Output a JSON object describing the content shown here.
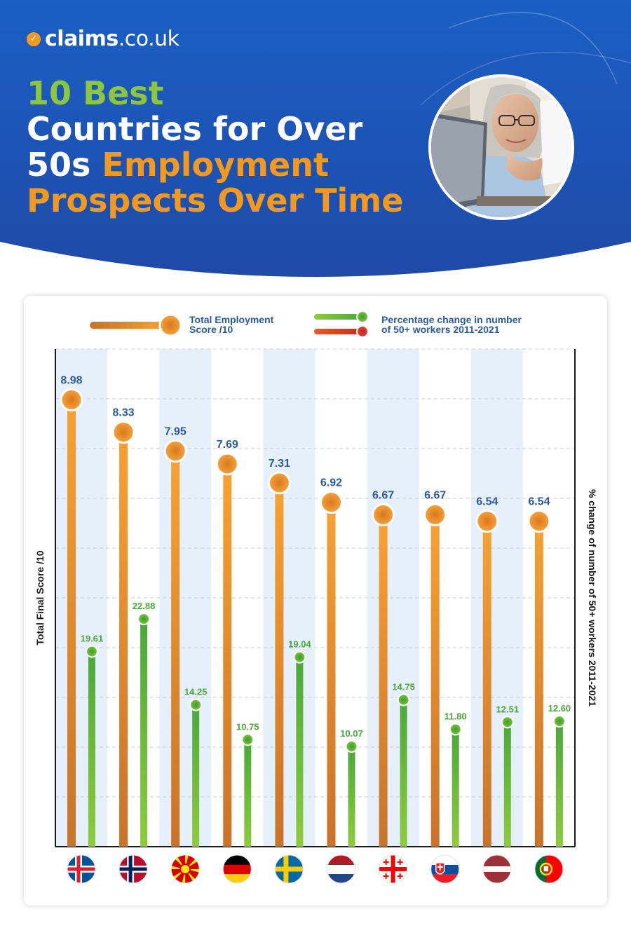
{
  "brand": {
    "name": "claims",
    "suffix": ".co.uk"
  },
  "header": {
    "title_line1": "10 Best",
    "title_white_1": "Countries for Over",
    "title_white_2": "50s ",
    "title_orange_1": "Employment",
    "title_orange_2": "Prospects Over Time"
  },
  "colors": {
    "header_top": "#1b5fc4",
    "header_bottom": "#1e4fae",
    "orange": "#f39a1e",
    "green": "#5db43a",
    "red": "#d9362b",
    "label_blue": "#2c5aa0",
    "column_band": "#e6f0fb"
  },
  "legend": {
    "score_label_1": "Total Employment",
    "score_label_2": "Score /10",
    "change_label_1": "Percentage change in number",
    "change_label_2": "of 50+ workers 2011-2021"
  },
  "chart_data": {
    "type": "bar",
    "title": "",
    "ylabel": "Total Final Score /10",
    "y2label": "% change of number of 50+ workers 2011-2021",
    "ylim": [
      0,
      10
    ],
    "y2lim": [
      0,
      50
    ],
    "grid": true,
    "legend_position": "top",
    "categories": [
      "iceland-flag-icon",
      "norway-flag-icon",
      "north-macedonia-flag-icon",
      "germany-flag-icon",
      "sweden-flag-icon",
      "netherlands-flag-icon",
      "georgia-flag-icon",
      "slovakia-flag-icon",
      "latvia-flag-icon",
      "portugal-flag-icon"
    ],
    "series": [
      {
        "name": "Total Employment Score /10",
        "axis": "left",
        "values": [
          8.98,
          8.33,
          7.95,
          7.69,
          7.31,
          6.92,
          6.67,
          6.67,
          6.54,
          6.54
        ],
        "labels": [
          "8.98",
          "8.33",
          "7.95",
          "7.69",
          "7.31",
          "6.92",
          "6.67",
          "6.67",
          "6.54",
          "6.54"
        ]
      },
      {
        "name": "Percentage change in number of 50+ workers 2011-2021",
        "axis": "right",
        "values": [
          19.61,
          22.88,
          14.25,
          10.75,
          19.04,
          10.07,
          14.75,
          11.8,
          12.51,
          12.6
        ],
        "labels": [
          "19.61",
          "22.88",
          "14.25",
          "10.75",
          "19.04",
          "10.07",
          "14.75",
          "11.80",
          "12.51",
          "12.60"
        ]
      }
    ]
  }
}
